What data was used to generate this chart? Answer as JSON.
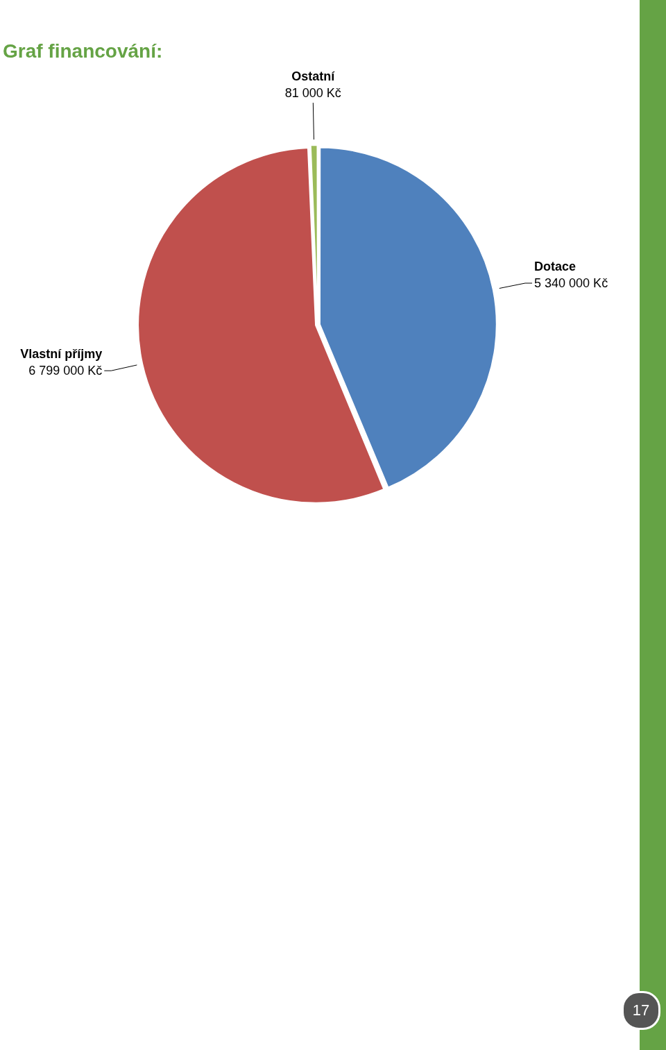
{
  "chart_data": {
    "type": "pie",
    "title": "Graf financování:",
    "categories": [
      "Dotace",
      "Vlastní příjmy",
      "Ostatní"
    ],
    "values": [
      5340000,
      6799000,
      81000
    ],
    "colors": [
      "#4f81bd",
      "#c0504d",
      "#9bbb59"
    ],
    "value_labels": [
      "5 340 000 Kč",
      "6 799 000 Kč",
      "81 000 Kč"
    ],
    "annotations": [
      "17"
    ]
  }
}
